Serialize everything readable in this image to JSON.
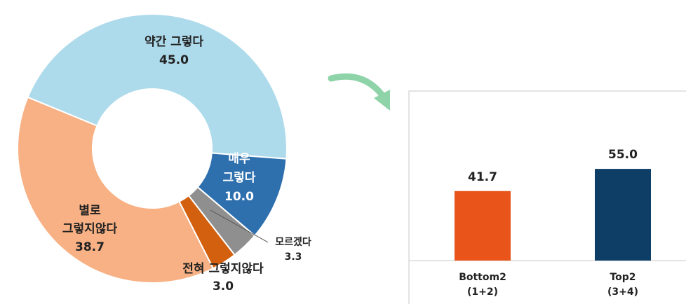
{
  "chart_data": [
    {
      "type": "donut",
      "categories": [
        "약간 그렇다",
        "매우 그렇다",
        "모르겠다",
        "전혀 그렇지않다",
        "별로 그렇지않다"
      ],
      "values": [
        45.0,
        10.0,
        3.3,
        3.0,
        38.7
      ],
      "value_labels": [
        "45.0",
        "10.0",
        "3.3",
        "3.0",
        "38.7"
      ],
      "colors": [
        "#aedbeb",
        "#2e6fad",
        "#8f8f8f",
        "#d2600f",
        "#f8b184"
      ]
    },
    {
      "type": "bar",
      "categories": [
        "Bottom2 (1+2)",
        "Top2 (3+4)"
      ],
      "values": [
        41.7,
        55.0
      ],
      "value_labels": [
        "41.7",
        "55.0"
      ],
      "colors": [
        "#e8541a",
        "#0e3e66"
      ],
      "ylim": [
        0,
        100
      ]
    }
  ]
}
